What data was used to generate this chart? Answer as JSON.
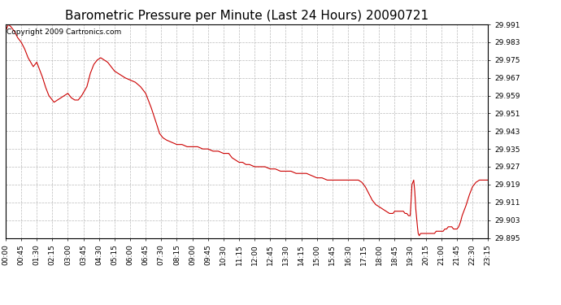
{
  "title": "Barometric Pressure per Minute (Last 24 Hours) 20090721",
  "copyright_text": "Copyright 2009 Cartronics.com",
  "line_color": "#cc0000",
  "background_color": "#ffffff",
  "plot_bg_color": "#ffffff",
  "grid_color": "#aaaaaa",
  "ylim": [
    29.895,
    29.991
  ],
  "yticks": [
    29.895,
    29.903,
    29.911,
    29.919,
    29.927,
    29.935,
    29.943,
    29.951,
    29.959,
    29.967,
    29.975,
    29.983,
    29.991
  ],
  "xtick_labels": [
    "00:00",
    "00:45",
    "01:30",
    "02:15",
    "03:00",
    "03:45",
    "04:30",
    "05:15",
    "06:00",
    "06:45",
    "07:30",
    "08:15",
    "09:00",
    "09:45",
    "10:30",
    "11:15",
    "12:00",
    "12:45",
    "13:30",
    "14:15",
    "15:00",
    "15:45",
    "16:30",
    "17:15",
    "18:00",
    "18:45",
    "19:30",
    "20:15",
    "21:00",
    "21:45",
    "22:30",
    "23:15"
  ],
  "num_ticks": 32,
  "xlim_max": 1395,
  "title_fontsize": 11,
  "tick_fontsize": 6.5,
  "copyright_fontsize": 6.5,
  "waypoints": [
    [
      0,
      29.988
    ],
    [
      8,
      29.991
    ],
    [
      15,
      29.99
    ],
    [
      25,
      29.988
    ],
    [
      35,
      29.985
    ],
    [
      45,
      29.983
    ],
    [
      55,
      29.98
    ],
    [
      65,
      29.976
    ],
    [
      80,
      29.972
    ],
    [
      90,
      29.974
    ],
    [
      95,
      29.972
    ],
    [
      105,
      29.968
    ],
    [
      115,
      29.963
    ],
    [
      125,
      29.959
    ],
    [
      135,
      29.957
    ],
    [
      140,
      29.956
    ],
    [
      150,
      29.957
    ],
    [
      160,
      29.958
    ],
    [
      170,
      29.959
    ],
    [
      180,
      29.96
    ],
    [
      190,
      29.958
    ],
    [
      200,
      29.957
    ],
    [
      210,
      29.957
    ],
    [
      220,
      29.959
    ],
    [
      235,
      29.963
    ],
    [
      245,
      29.969
    ],
    [
      255,
      29.973
    ],
    [
      265,
      29.975
    ],
    [
      275,
      29.976
    ],
    [
      285,
      29.975
    ],
    [
      295,
      29.974
    ],
    [
      305,
      29.972
    ],
    [
      315,
      29.97
    ],
    [
      325,
      29.969
    ],
    [
      335,
      29.968
    ],
    [
      345,
      29.967
    ],
    [
      360,
      29.966
    ],
    [
      375,
      29.965
    ],
    [
      390,
      29.963
    ],
    [
      405,
      29.96
    ],
    [
      420,
      29.954
    ],
    [
      435,
      29.947
    ],
    [
      445,
      29.942
    ],
    [
      455,
      29.94
    ],
    [
      465,
      29.939
    ],
    [
      480,
      29.938
    ],
    [
      495,
      29.937
    ],
    [
      510,
      29.937
    ],
    [
      525,
      29.936
    ],
    [
      540,
      29.936
    ],
    [
      555,
      29.936
    ],
    [
      570,
      29.935
    ],
    [
      585,
      29.935
    ],
    [
      600,
      29.934
    ],
    [
      615,
      29.934
    ],
    [
      630,
      29.933
    ],
    [
      645,
      29.933
    ],
    [
      655,
      29.931
    ],
    [
      665,
      29.93
    ],
    [
      675,
      29.929
    ],
    [
      685,
      29.929
    ],
    [
      695,
      29.928
    ],
    [
      705,
      29.928
    ],
    [
      720,
      29.927
    ],
    [
      735,
      29.927
    ],
    [
      750,
      29.927
    ],
    [
      765,
      29.926
    ],
    [
      780,
      29.926
    ],
    [
      795,
      29.925
    ],
    [
      810,
      29.925
    ],
    [
      825,
      29.925
    ],
    [
      840,
      29.924
    ],
    [
      855,
      29.924
    ],
    [
      870,
      29.924
    ],
    [
      885,
      29.923
    ],
    [
      900,
      29.922
    ],
    [
      915,
      29.922
    ],
    [
      930,
      29.921
    ],
    [
      945,
      29.921
    ],
    [
      955,
      29.921
    ],
    [
      965,
      29.921
    ],
    [
      975,
      29.921
    ],
    [
      985,
      29.921
    ],
    [
      995,
      29.921
    ],
    [
      1005,
      29.921
    ],
    [
      1015,
      29.921
    ],
    [
      1020,
      29.921
    ],
    [
      1030,
      29.92
    ],
    [
      1040,
      29.918
    ],
    [
      1050,
      29.915
    ],
    [
      1060,
      29.912
    ],
    [
      1070,
      29.91
    ],
    [
      1080,
      29.909
    ],
    [
      1090,
      29.908
    ],
    [
      1100,
      29.907
    ],
    [
      1110,
      29.906
    ],
    [
      1115,
      29.906
    ],
    [
      1120,
      29.906
    ],
    [
      1125,
      29.907
    ],
    [
      1130,
      29.907
    ],
    [
      1135,
      29.907
    ],
    [
      1140,
      29.907
    ],
    [
      1150,
      29.907
    ],
    [
      1155,
      29.906
    ],
    [
      1160,
      29.906
    ],
    [
      1165,
      29.905
    ],
    [
      1170,
      29.905
    ],
    [
      1175,
      29.919
    ],
    [
      1180,
      29.921
    ],
    [
      1183,
      29.916
    ],
    [
      1186,
      29.908
    ],
    [
      1190,
      29.901
    ],
    [
      1193,
      29.897
    ],
    [
      1196,
      29.896
    ],
    [
      1200,
      29.897
    ],
    [
      1205,
      29.897
    ],
    [
      1210,
      29.897
    ],
    [
      1215,
      29.897
    ],
    [
      1220,
      29.897
    ],
    [
      1230,
      29.897
    ],
    [
      1240,
      29.897
    ],
    [
      1245,
      29.898
    ],
    [
      1250,
      29.898
    ],
    [
      1255,
      29.898
    ],
    [
      1260,
      29.898
    ],
    [
      1265,
      29.898
    ],
    [
      1270,
      29.899
    ],
    [
      1275,
      29.899
    ],
    [
      1280,
      29.9
    ],
    [
      1285,
      29.9
    ],
    [
      1290,
      29.9
    ],
    [
      1295,
      29.899
    ],
    [
      1300,
      29.899
    ],
    [
      1305,
      29.899
    ],
    [
      1310,
      29.9
    ],
    [
      1315,
      29.902
    ],
    [
      1320,
      29.905
    ],
    [
      1330,
      29.909
    ],
    [
      1340,
      29.914
    ],
    [
      1350,
      29.918
    ],
    [
      1360,
      29.92
    ],
    [
      1370,
      29.921
    ],
    [
      1380,
      29.921
    ],
    [
      1390,
      29.921
    ],
    [
      1395,
      29.921
    ]
  ]
}
